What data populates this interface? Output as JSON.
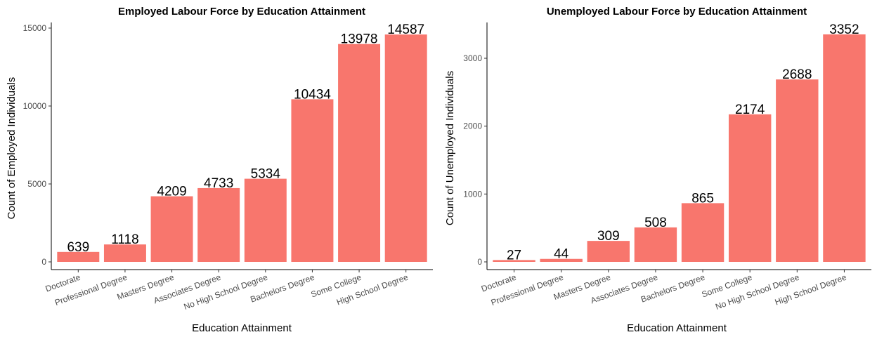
{
  "chart_data": [
    {
      "type": "bar",
      "title": "Employed Labour Force by Education Attainment",
      "xlabel": "Education Attainment",
      "ylabel": "Count of Employed Individuals",
      "categories": [
        "Doctorate",
        "Professional Degree",
        "Masters Degree",
        "Associates Degree",
        "No High School Degree",
        "Bachelors Degree",
        "Some College",
        "High School Degree"
      ],
      "values": [
        639,
        1118,
        4209,
        4733,
        5334,
        10434,
        13978,
        14587
      ],
      "yticks": [
        0,
        5000,
        10000,
        15000
      ],
      "ylim": [
        0,
        15000
      ],
      "bar_color": "#F8766D",
      "grid": false
    },
    {
      "type": "bar",
      "title": "Unemployed Labour Force by Education Attainment",
      "xlabel": "Education Attainment",
      "ylabel": "Count of Unemployed Individuals",
      "categories": [
        "Doctorate",
        "Professional Degree",
        "Masters Degree",
        "Associates Degree",
        "Bachelors Degree",
        "Some College",
        "No High School Degree",
        "High School Degree"
      ],
      "values": [
        27,
        44,
        309,
        508,
        865,
        2174,
        2688,
        3352
      ],
      "yticks": [
        0,
        1000,
        2000,
        3000
      ],
      "ylim": [
        0,
        3352
      ],
      "bar_color": "#F8766D",
      "grid": false
    }
  ]
}
